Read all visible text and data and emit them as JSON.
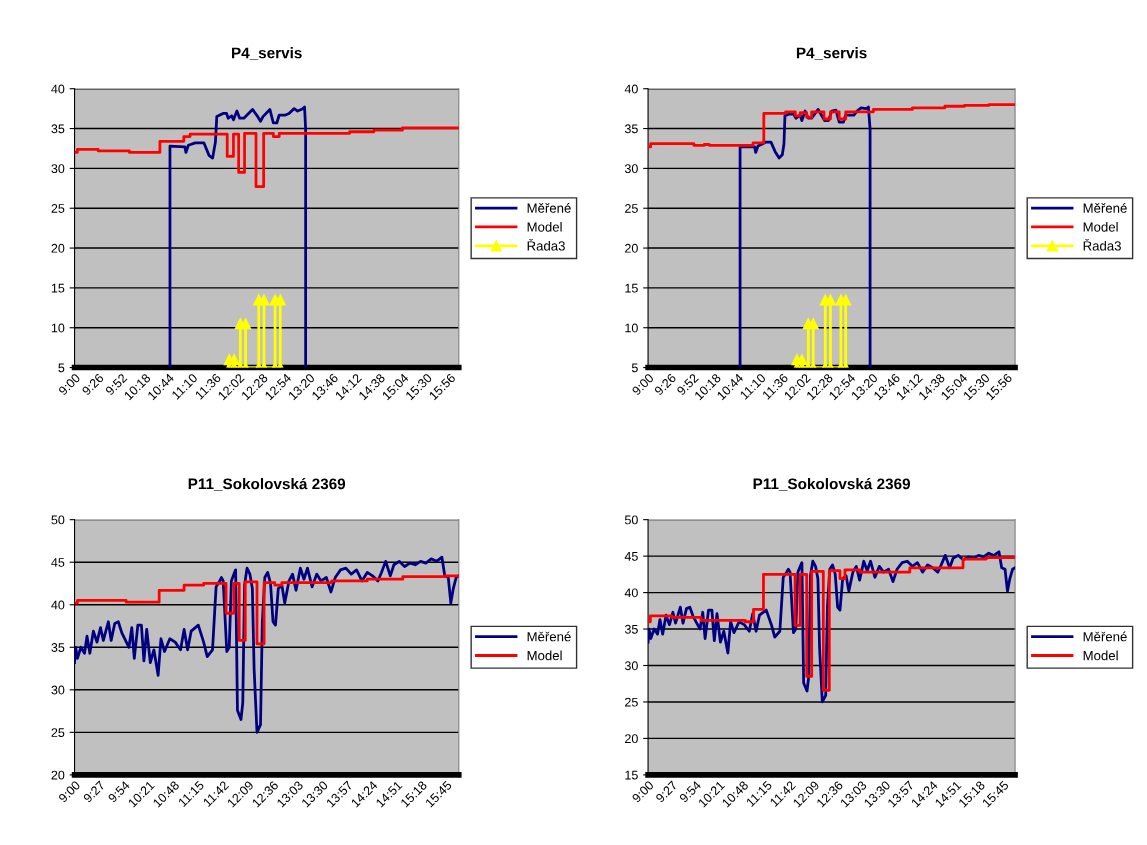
{
  "chart_data": [
    {
      "type": "line",
      "title": "P4_servis",
      "xlim": [
        9.0,
        16.1
      ],
      "ylim": [
        5,
        40
      ],
      "yticks": [
        5,
        10,
        15,
        20,
        25,
        30,
        35,
        40
      ],
      "grid": "y",
      "legend": "right",
      "xticks": [
        {
          "value": 9.0,
          "label": "9:00"
        },
        {
          "value": 9.4333,
          "label": "9:26"
        },
        {
          "value": 9.8667,
          "label": "9:52"
        },
        {
          "value": 10.3,
          "label": "10:18"
        },
        {
          "value": 10.7333,
          "label": "10:44"
        },
        {
          "value": 11.1667,
          "label": "11:10"
        },
        {
          "value": 11.6,
          "label": "11:36"
        },
        {
          "value": 12.0333,
          "label": "12:02"
        },
        {
          "value": 12.4667,
          "label": "12:28"
        },
        {
          "value": 12.9,
          "label": "12:54"
        },
        {
          "value": 13.3333,
          "label": "13:20"
        },
        {
          "value": 13.7667,
          "label": "13:46"
        },
        {
          "value": 14.2,
          "label": "14:12"
        },
        {
          "value": 14.6333,
          "label": "14:38"
        },
        {
          "value": 15.0667,
          "label": "15:04"
        },
        {
          "value": 15.5,
          "label": "15:30"
        },
        {
          "value": 15.9333,
          "label": "15:56"
        }
      ],
      "series": [
        {
          "name": "Měřené",
          "color": "#000080",
          "x": [
            10.763,
            10.763,
            11.038,
            11.058,
            11.103,
            11.231,
            11.391,
            11.487,
            11.551,
            11.603,
            11.628,
            11.744,
            11.808,
            11.84,
            11.903,
            11.936,
            12.0,
            12.051,
            12.128,
            12.288,
            12.385,
            12.436,
            12.481,
            12.609,
            12.673,
            12.737,
            12.782,
            12.897,
            12.962,
            13.058,
            13.122,
            13.218,
            13.25,
            13.27,
            13.27
          ],
          "values": [
            5,
            32.8,
            32.7,
            32.0,
            32.9,
            33.2,
            33.2,
            31.6,
            31.3,
            33.3,
            36.5,
            36.9,
            36.9,
            36.3,
            36.6,
            36.1,
            37.2,
            36.3,
            36.3,
            37.4,
            36.5,
            35.9,
            36.5,
            37.4,
            35.7,
            35.7,
            36.7,
            36.7,
            36.9,
            37.5,
            37.2,
            37.5,
            37.7,
            34.9,
            5
          ]
        },
        {
          "name": "Model",
          "color": "#ff0000",
          "type": "step",
          "x": [
            9.0,
            9.051,
            9.436,
            10.013,
            10.577,
            11.019,
            11.135,
            11.821,
            11.936,
            12.032,
            12.141,
            12.353,
            12.494,
            12.673,
            12.782,
            14.083,
            14.532,
            15.058,
            16.1
          ],
          "values": [
            32.0,
            32.4,
            32.2,
            32.0,
            33.4,
            34.0,
            34.3,
            31.5,
            34.3,
            29.5,
            34.4,
            27.7,
            34.4,
            34.0,
            34.4,
            34.6,
            34.8,
            35.1,
            35.1
          ]
        },
        {
          "name": "Řada3",
          "color": "#ffff00",
          "marker": "triangle",
          "x": [
            11.859,
            11.859,
            11.949,
            11.949,
            12.064,
            12.064,
            12.16,
            12.16,
            12.404,
            12.404,
            12.5,
            12.5,
            12.705,
            12.705,
            12.801,
            12.801
          ],
          "values": [
            5,
            6,
            6,
            5,
            5,
            10.5,
            10.5,
            5,
            5,
            13.5,
            13.5,
            5,
            5,
            13.5,
            13.5,
            5
          ]
        }
      ]
    },
    {
      "type": "line",
      "title": "P4_servis",
      "xlim": [
        9.0,
        16.1
      ],
      "ylim": [
        5,
        40
      ],
      "yticks": [
        5,
        10,
        15,
        20,
        25,
        30,
        35,
        40
      ],
      "grid": "y",
      "legend": "right",
      "xticks": [
        {
          "value": 9.0,
          "label": "9:00"
        },
        {
          "value": 9.4333,
          "label": "9:26"
        },
        {
          "value": 9.8667,
          "label": "9:52"
        },
        {
          "value": 10.3,
          "label": "10:18"
        },
        {
          "value": 10.7333,
          "label": "10:44"
        },
        {
          "value": 11.1667,
          "label": "11:10"
        },
        {
          "value": 11.6,
          "label": "11:36"
        },
        {
          "value": 12.0333,
          "label": "12:02"
        },
        {
          "value": 12.4667,
          "label": "12:28"
        },
        {
          "value": 12.9,
          "label": "12:54"
        },
        {
          "value": 13.3333,
          "label": "13:20"
        },
        {
          "value": 13.7667,
          "label": "13:46"
        },
        {
          "value": 14.2,
          "label": "14:12"
        },
        {
          "value": 14.6333,
          "label": "14:38"
        },
        {
          "value": 15.0667,
          "label": "15:04"
        },
        {
          "value": 15.5,
          "label": "15:30"
        },
        {
          "value": 15.9333,
          "label": "15:56"
        }
      ],
      "series": [
        {
          "name": "Měřené",
          "color": "#000080",
          "x": [
            10.78,
            10.78,
            11.063,
            11.082,
            11.126,
            11.283,
            11.377,
            11.459,
            11.535,
            11.597,
            11.629,
            11.648,
            11.723,
            11.818,
            11.862,
            11.943,
            11.975,
            12.038,
            12.1,
            12.163,
            12.29,
            12.415,
            12.49,
            12.553,
            12.635,
            12.698,
            12.78,
            12.823,
            12.982,
            13.043,
            13.12,
            13.22,
            13.263,
            13.295,
            13.295
          ],
          "values": [
            5,
            32.7,
            32.7,
            32.0,
            32.8,
            33.3,
            33.3,
            32.1,
            31.3,
            31.7,
            33.1,
            36.6,
            36.8,
            36.8,
            36.3,
            36.7,
            36.0,
            37.2,
            36.3,
            36.3,
            37.4,
            36.0,
            36.0,
            37.2,
            37.3,
            35.8,
            35.8,
            36.7,
            36.7,
            37.2,
            37.6,
            37.5,
            37.7,
            34.9,
            5
          ]
        },
        {
          "name": "Model",
          "color": "#ff0000",
          "type": "step",
          "x": [
            9.0,
            9.05,
            9.887,
            10.088,
            10.182,
            11.031,
            11.239,
            11.66,
            11.849,
            11.943,
            12.069,
            12.164,
            12.403,
            12.528,
            12.698,
            12.824,
            13.359,
            14.113,
            14.742,
            15.12,
            15.592,
            16.1
          ],
          "values": [
            32.7,
            33.1,
            32.9,
            33.0,
            32.9,
            33.2,
            36.9,
            37.1,
            36.6,
            37.0,
            36.4,
            37.1,
            36.2,
            37.1,
            36.2,
            37.1,
            37.4,
            37.6,
            37.8,
            37.9,
            38.0,
            38.0
          ]
        },
        {
          "name": "Řada3",
          "color": "#ffff00",
          "marker": "triangle",
          "x": [
            11.88,
            11.88,
            11.975,
            11.975,
            12.1,
            12.1,
            12.195,
            12.195,
            12.428,
            12.428,
            12.528,
            12.528,
            12.73,
            12.73,
            12.823,
            12.823
          ],
          "values": [
            5,
            6,
            6,
            5,
            5,
            10.5,
            10.5,
            5,
            5,
            13.5,
            13.5,
            5,
            5,
            13.5,
            13.5,
            5
          ]
        }
      ]
    },
    {
      "type": "line",
      "title": "P11_Sokolovská 2369",
      "xlim": [
        9.0,
        15.98
      ],
      "ylim": [
        20,
        50
      ],
      "yticks": [
        20,
        25,
        30,
        35,
        40,
        45,
        50
      ],
      "grid": "y",
      "legend": "right",
      "xticks": [
        {
          "value": 9.0,
          "label": "9:00"
        },
        {
          "value": 9.45,
          "label": "9:27"
        },
        {
          "value": 9.9,
          "label": "9:54"
        },
        {
          "value": 10.35,
          "label": "10:21"
        },
        {
          "value": 10.8,
          "label": "10:48"
        },
        {
          "value": 11.25,
          "label": "11:15"
        },
        {
          "value": 11.7,
          "label": "11:42"
        },
        {
          "value": 12.15,
          "label": "12:09"
        },
        {
          "value": 12.6,
          "label": "12:36"
        },
        {
          "value": 13.05,
          "label": "13:03"
        },
        {
          "value": 13.5,
          "label": "13:30"
        },
        {
          "value": 13.95,
          "label": "13:57"
        },
        {
          "value": 14.4,
          "label": "14:24"
        },
        {
          "value": 14.85,
          "label": "14:51"
        },
        {
          "value": 15.3,
          "label": "15:18"
        },
        {
          "value": 15.75,
          "label": "15:45"
        }
      ],
      "series": [
        {
          "name": "Měřené",
          "color": "#000080",
          "type": "line",
          "x": [
            9.0,
            9.019,
            9.052,
            9.116,
            9.181,
            9.226,
            9.278,
            9.342,
            9.407,
            9.472,
            9.523,
            9.614,
            9.665,
            9.73,
            9.795,
            9.859,
            9.988,
            10.04,
            10.085,
            10.15,
            10.214,
            10.26,
            10.311,
            10.376,
            10.441,
            10.518,
            10.57,
            10.634,
            10.731,
            10.828,
            10.925,
            10.99,
            11.054,
            11.119,
            11.248,
            11.345,
            11.41,
            11.506,
            11.571,
            11.636,
            11.668,
            11.7,
            11.765,
            11.81,
            11.849,
            11.894,
            11.926,
            11.959,
            12.023,
            12.056,
            12.088,
            12.133,
            12.185,
            12.23,
            12.262,
            12.314,
            12.378,
            12.411,
            12.456,
            12.508,
            12.56,
            12.605,
            12.65,
            12.701,
            12.766,
            12.818,
            12.895,
            12.96,
            13.023,
            13.102,
            13.167,
            13.231,
            13.315,
            13.399,
            13.477,
            13.574,
            13.658,
            13.735,
            13.832,
            13.929,
            14.026,
            14.123,
            14.22,
            14.317,
            14.413,
            14.51,
            14.575,
            14.652,
            14.736,
            14.801,
            14.898,
            14.995,
            15.092,
            15.189,
            15.286,
            15.382,
            15.479,
            15.576,
            15.673,
            15.725,
            15.789,
            15.835,
            15.88,
            15.932,
            15.977
          ],
          "values": [
            33.2,
            35.0,
            33.7,
            35.0,
            34.3,
            36.3,
            34.3,
            36.9,
            35.6,
            37.3,
            35.8,
            38.0,
            35.8,
            37.8,
            38.0,
            36.7,
            35.0,
            37.3,
            33.7,
            37.6,
            37.6,
            33.4,
            37.1,
            33.2,
            34.7,
            31.7,
            36.0,
            34.5,
            36.0,
            35.6,
            34.7,
            37.1,
            34.7,
            36.9,
            37.6,
            35.6,
            33.9,
            34.7,
            42.1,
            42.8,
            43.2,
            42.8,
            34.5,
            35.0,
            42.8,
            43.6,
            44.1,
            27.6,
            26.5,
            28.5,
            42.3,
            44.3,
            43.6,
            41.9,
            32.4,
            25.0,
            25.9,
            38.0,
            43.2,
            43.8,
            42.5,
            38.0,
            37.6,
            41.9,
            42.3,
            40.2,
            42.8,
            43.6,
            41.7,
            44.3,
            43.0,
            44.3,
            42.1,
            43.6,
            42.8,
            43.2,
            41.5,
            43.2,
            44.1,
            44.3,
            43.6,
            44.1,
            42.8,
            43.8,
            43.4,
            42.8,
            43.8,
            45.1,
            43.4,
            44.7,
            45.1,
            44.5,
            44.9,
            44.7,
            45.1,
            44.9,
            45.4,
            45.1,
            45.6,
            43.4,
            43.2,
            40.2,
            41.9,
            43.2,
            43.4
          ]
        },
        {
          "name": "Model",
          "color": "#ff0000",
          "type": "step",
          "x": [
            9.0,
            9.052,
            9.937,
            10.537,
            10.99,
            11.345,
            11.752,
            11.894,
            11.991,
            12.101,
            12.314,
            12.443,
            12.637,
            12.766,
            13.67,
            14.317,
            14.963,
            15.738,
            15.98
          ],
          "values": [
            40.2,
            40.5,
            40.3,
            41.7,
            42.3,
            42.5,
            39.0,
            42.5,
            35.8,
            42.7,
            35.4,
            42.6,
            42.3,
            42.6,
            42.8,
            43.0,
            43.3,
            43.4,
            43.4
          ]
        }
      ]
    },
    {
      "type": "line",
      "title": "P11_Sokolovská 2369",
      "xlim": [
        9.0,
        15.98
      ],
      "ylim": [
        15,
        50
      ],
      "yticks": [
        15,
        20,
        25,
        30,
        35,
        40,
        45,
        50
      ],
      "grid": "y",
      "legend": "right",
      "xticks": [
        {
          "value": 9.0,
          "label": "9:00"
        },
        {
          "value": 9.45,
          "label": "9:27"
        },
        {
          "value": 9.9,
          "label": "9:54"
        },
        {
          "value": 10.35,
          "label": "10:21"
        },
        {
          "value": 10.8,
          "label": "10:48"
        },
        {
          "value": 11.25,
          "label": "11:15"
        },
        {
          "value": 11.7,
          "label": "11:42"
        },
        {
          "value": 12.15,
          "label": "12:09"
        },
        {
          "value": 12.6,
          "label": "12:36"
        },
        {
          "value": 13.05,
          "label": "13:03"
        },
        {
          "value": 13.5,
          "label": "13:30"
        },
        {
          "value": 13.95,
          "label": "13:57"
        },
        {
          "value": 14.4,
          "label": "14:24"
        },
        {
          "value": 14.85,
          "label": "14:51"
        },
        {
          "value": 15.3,
          "label": "15:18"
        },
        {
          "value": 15.75,
          "label": "15:45"
        }
      ],
      "series": [
        {
          "name": "Měřené",
          "color": "#000080",
          "type": "line",
          "x": [
            9.0,
            9.019,
            9.052,
            9.116,
            9.181,
            9.226,
            9.278,
            9.342,
            9.407,
            9.472,
            9.523,
            9.614,
            9.665,
            9.73,
            9.795,
            9.859,
            9.988,
            10.04,
            10.085,
            10.15,
            10.214,
            10.26,
            10.311,
            10.376,
            10.441,
            10.518,
            10.57,
            10.634,
            10.731,
            10.828,
            10.925,
            10.99,
            11.054,
            11.119,
            11.248,
            11.345,
            11.41,
            11.506,
            11.571,
            11.636,
            11.668,
            11.7,
            11.765,
            11.81,
            11.849,
            11.894,
            11.926,
            11.959,
            12.023,
            12.056,
            12.088,
            12.133,
            12.185,
            12.23,
            12.262,
            12.314,
            12.378,
            12.411,
            12.456,
            12.508,
            12.56,
            12.605,
            12.65,
            12.701,
            12.766,
            12.818,
            12.895,
            12.96,
            13.023,
            13.102,
            13.167,
            13.231,
            13.315,
            13.399,
            13.477,
            13.574,
            13.658,
            13.735,
            13.832,
            13.929,
            14.026,
            14.123,
            14.22,
            14.317,
            14.413,
            14.51,
            14.575,
            14.652,
            14.736,
            14.801,
            14.898,
            14.995,
            15.092,
            15.189,
            15.286,
            15.382,
            15.479,
            15.576,
            15.673,
            15.725,
            15.789,
            15.835,
            15.88,
            15.932,
            15.977
          ],
          "values": [
            33.2,
            35.0,
            33.7,
            35.0,
            34.3,
            36.3,
            34.3,
            36.9,
            35.6,
            37.3,
            35.8,
            38.0,
            35.8,
            37.8,
            38.0,
            36.7,
            35.0,
            37.3,
            33.7,
            37.6,
            37.6,
            33.4,
            37.1,
            33.2,
            34.7,
            31.7,
            36.0,
            34.5,
            36.0,
            35.6,
            34.7,
            37.1,
            34.7,
            36.9,
            37.6,
            35.6,
            33.9,
            34.7,
            42.1,
            42.8,
            43.2,
            42.8,
            34.5,
            35.0,
            42.8,
            43.6,
            44.1,
            27.6,
            26.5,
            28.5,
            42.3,
            44.3,
            43.6,
            41.9,
            32.4,
            25.0,
            25.9,
            38.0,
            43.2,
            43.8,
            42.5,
            38.0,
            37.6,
            41.9,
            42.3,
            40.2,
            42.8,
            43.6,
            41.7,
            44.3,
            43.0,
            44.3,
            42.1,
            43.6,
            42.8,
            43.2,
            41.5,
            43.2,
            44.1,
            44.3,
            43.6,
            44.1,
            42.8,
            43.8,
            43.4,
            42.8,
            43.8,
            45.1,
            43.4,
            44.7,
            45.1,
            44.5,
            44.9,
            44.7,
            45.1,
            44.9,
            45.4,
            45.1,
            45.6,
            43.4,
            43.2,
            40.2,
            41.9,
            43.2,
            43.4
          ]
        },
        {
          "name": "Model",
          "color": "#ff0000",
          "type": "step",
          "x": [
            9.0,
            9.044,
            9.455,
            10.006,
            10.847,
            11.005,
            11.195,
            11.796,
            11.891,
            12.017,
            12.112,
            12.333,
            12.447,
            12.649,
            12.744,
            13.029,
            13.978,
            14.99,
            15.433,
            15.98
          ],
          "values": [
            36.0,
            36.8,
            36.6,
            36.2,
            36.0,
            37.7,
            42.5,
            35.5,
            42.5,
            28.5,
            42.9,
            26.6,
            43.0,
            41.9,
            43.1,
            42.8,
            43.4,
            44.6,
            44.8,
            44.8
          ]
        }
      ]
    }
  ]
}
